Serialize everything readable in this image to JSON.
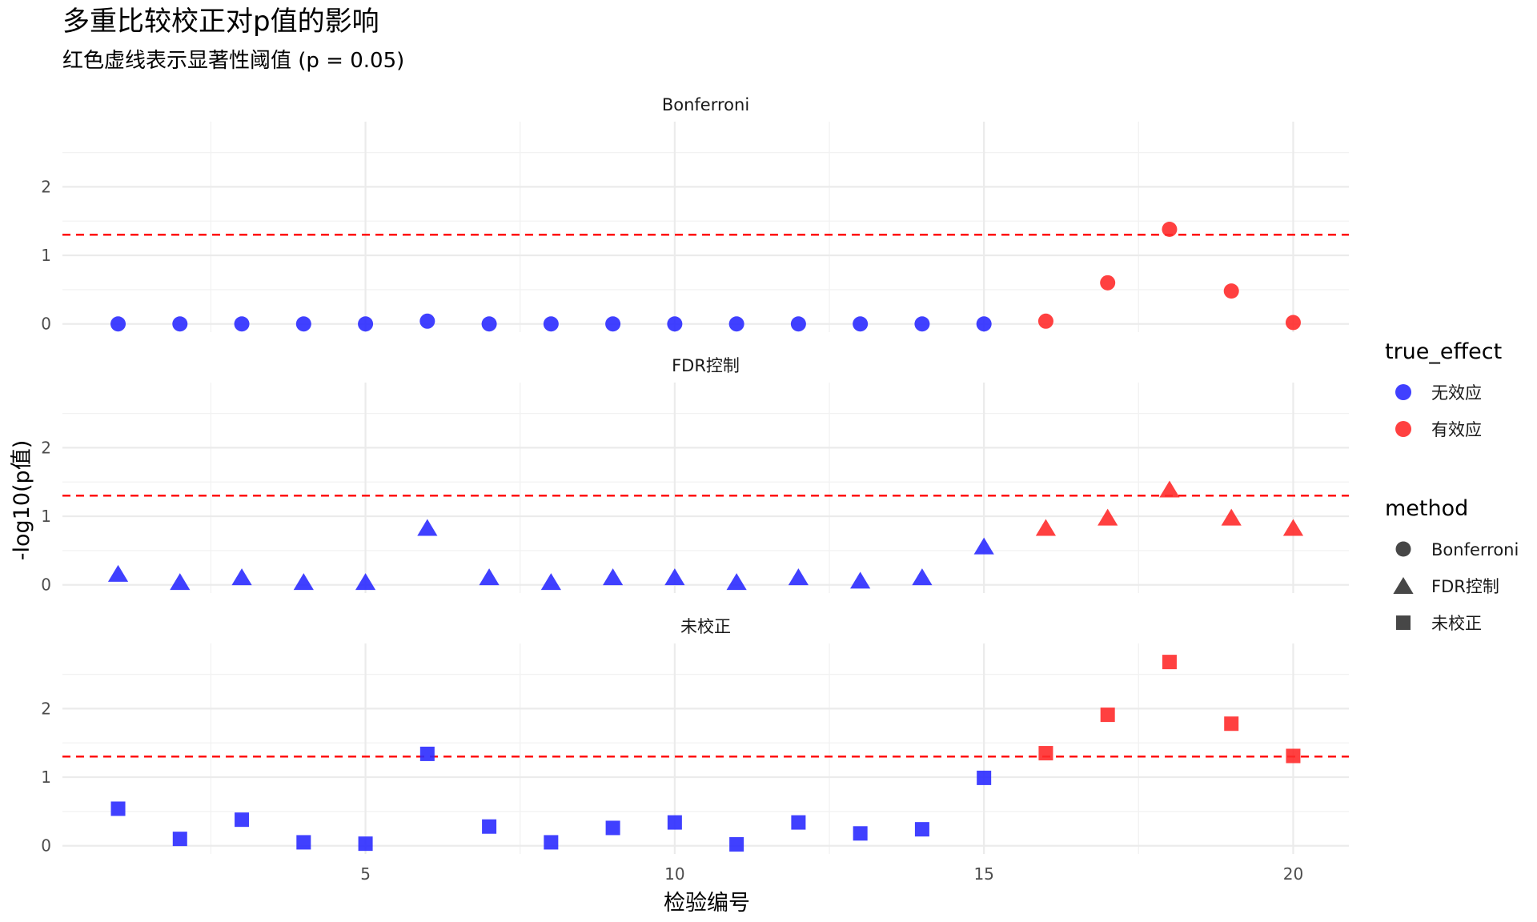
{
  "chart_data": {
    "type": "scatter",
    "title": "多重比较校正对p值的影响",
    "subtitle": "红色虚线表示显著性阈值 (p = 0.05)",
    "xlabel": "检验编号",
    "ylabel": "-log10(p值)",
    "xlim": [
      0.1,
      20.9
    ],
    "ylim": [
      -0.12,
      2.95
    ],
    "x_ticks": [
      5,
      10,
      15,
      20
    ],
    "y_ticks": [
      0,
      1,
      2
    ],
    "grid": true,
    "threshold": {
      "value": 1.301,
      "color": "#ff0000",
      "style": "dashed"
    },
    "legend_position": "right",
    "legend": {
      "color_title": "true_effect",
      "color_entries": [
        {
          "label": "无效应",
          "color": "#2b2bff"
        },
        {
          "label": "有效应",
          "color": "#ff2b2b"
        }
      ],
      "shape_title": "method",
      "shape_entries": [
        {
          "label": "Bonferroni",
          "shape": "circle"
        },
        {
          "label": "FDR控制",
          "shape": "triangle"
        },
        {
          "label": "未校正",
          "shape": "square"
        }
      ]
    },
    "facets": [
      {
        "label": "Bonferroni",
        "shape": "circle",
        "x": [
          1,
          2,
          3,
          4,
          5,
          6,
          7,
          8,
          9,
          10,
          11,
          12,
          13,
          14,
          15,
          16,
          17,
          18,
          19,
          20
        ],
        "y": [
          0,
          0,
          0,
          0,
          0,
          0.04,
          0,
          0,
          0,
          0,
          0,
          0,
          0,
          0,
          0,
          0.04,
          0.6,
          1.38,
          0.48,
          0.02
        ],
        "effect": [
          0,
          0,
          0,
          0,
          0,
          0,
          0,
          0,
          0,
          0,
          0,
          0,
          0,
          0,
          0,
          1,
          1,
          1,
          1,
          1
        ]
      },
      {
        "label": "FDR控制",
        "shape": "triangle",
        "x": [
          1,
          2,
          3,
          4,
          5,
          6,
          7,
          8,
          9,
          10,
          11,
          12,
          13,
          14,
          15,
          16,
          17,
          18,
          19,
          20
        ],
        "y": [
          0.15,
          0.03,
          0.1,
          0.03,
          0.03,
          0.82,
          0.1,
          0.03,
          0.1,
          0.1,
          0.03,
          0.1,
          0.05,
          0.1,
          0.55,
          0.82,
          0.97,
          1.38,
          0.97,
          0.82
        ],
        "effect": [
          0,
          0,
          0,
          0,
          0,
          0,
          0,
          0,
          0,
          0,
          0,
          0,
          0,
          0,
          0,
          1,
          1,
          1,
          1,
          1
        ]
      },
      {
        "label": "未校正",
        "shape": "square",
        "x": [
          1,
          2,
          3,
          4,
          5,
          6,
          7,
          8,
          9,
          10,
          11,
          12,
          13,
          14,
          15,
          16,
          17,
          18,
          19,
          20
        ],
        "y": [
          0.54,
          0.1,
          0.38,
          0.05,
          0.03,
          1.34,
          0.28,
          0.05,
          0.26,
          0.34,
          0.02,
          0.34,
          0.18,
          0.24,
          0.99,
          1.35,
          1.91,
          2.68,
          1.78,
          1.31
        ],
        "effect": [
          0,
          0,
          0,
          0,
          0,
          0,
          0,
          0,
          0,
          0,
          0,
          0,
          0,
          0,
          0,
          1,
          1,
          1,
          1,
          1
        ]
      }
    ]
  }
}
